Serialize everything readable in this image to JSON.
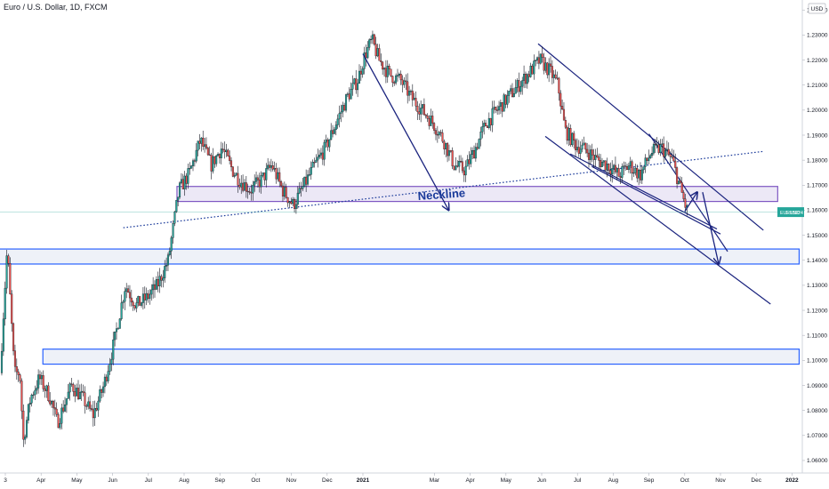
{
  "chart_title": "Euro / U.S. Dollar, 1D, FXCM",
  "currency_badge": "USD",
  "price_tag": {
    "symbol": "EURUSD",
    "value": "1.15924",
    "color": "#26a69a"
  },
  "neckline_label": "Neckline",
  "colors": {
    "up": "#26a69a",
    "down": "#ef5350",
    "wick": "#131722",
    "zone_border": "#2962ff",
    "zone_fill": "#eef1f8",
    "purple": "#7e57c2",
    "channel": "#1a237e",
    "dotted": "#1a3a9a"
  },
  "chart_data": {
    "type": "candlestick",
    "y_axis": {
      "min": 1.055,
      "max": 1.244,
      "ticks": [
        "1.06000",
        "1.07000",
        "1.08000",
        "1.09000",
        "1.10000",
        "1.11000",
        "1.12000",
        "1.13000",
        "1.14000",
        "1.15000",
        "1.16000",
        "1.17000",
        "1.18000",
        "1.19000",
        "1.20000",
        "1.21000",
        "1.22000",
        "1.23000",
        "1.24000"
      ]
    },
    "x_axis": {
      "ticks": [
        {
          "label": "3",
          "t": 0
        },
        {
          "label": "Apr",
          "t": 1
        },
        {
          "label": "May",
          "t": 2
        },
        {
          "label": "Jun",
          "t": 3
        },
        {
          "label": "Jul",
          "t": 4
        },
        {
          "label": "Aug",
          "t": 5
        },
        {
          "label": "Sep",
          "t": 6
        },
        {
          "label": "Oct",
          "t": 7
        },
        {
          "label": "Nov",
          "t": 8
        },
        {
          "label": "Dec",
          "t": 9
        },
        {
          "label": "2021",
          "t": 10,
          "bold": true
        },
        {
          "label": "Mar",
          "t": 12
        },
        {
          "label": "Apr",
          "t": 13
        },
        {
          "label": "May",
          "t": 14
        },
        {
          "label": "Jun",
          "t": 15
        },
        {
          "label": "Jul",
          "t": 16
        },
        {
          "label": "Aug",
          "t": 17
        },
        {
          "label": "Sep",
          "t": 18
        },
        {
          "label": "Oct",
          "t": 19
        },
        {
          "label": "Nov",
          "t": 20
        },
        {
          "label": "Dec",
          "t": 21
        },
        {
          "label": "2022",
          "t": 22,
          "bold": true
        }
      ]
    },
    "price_path": [
      [
        -0.1,
        1.095
      ],
      [
        0.1,
        1.145
      ],
      [
        0.3,
        1.095
      ],
      [
        0.45,
        1.095
      ],
      [
        0.55,
        1.068
      ],
      [
        0.75,
        1.085
      ],
      [
        1.0,
        1.093
      ],
      [
        1.3,
        1.085
      ],
      [
        1.5,
        1.075
      ],
      [
        1.9,
        1.09
      ],
      [
        2.2,
        1.085
      ],
      [
        2.5,
        1.078
      ],
      [
        2.8,
        1.09
      ],
      [
        3.1,
        1.108
      ],
      [
        3.4,
        1.13
      ],
      [
        3.7,
        1.122
      ],
      [
        4.0,
        1.125
      ],
      [
        4.3,
        1.13
      ],
      [
        4.6,
        1.14
      ],
      [
        4.9,
        1.168
      ],
      [
        5.2,
        1.175
      ],
      [
        5.5,
        1.188
      ],
      [
        5.8,
        1.178
      ],
      [
        6.1,
        1.185
      ],
      [
        6.4,
        1.176
      ],
      [
        6.6,
        1.172
      ],
      [
        6.9,
        1.168
      ],
      [
        7.2,
        1.172
      ],
      [
        7.5,
        1.178
      ],
      [
        7.8,
        1.168
      ],
      [
        8.1,
        1.162
      ],
      [
        8.4,
        1.17
      ],
      [
        8.7,
        1.178
      ],
      [
        9.0,
        1.185
      ],
      [
        9.3,
        1.195
      ],
      [
        9.6,
        1.205
      ],
      [
        9.9,
        1.212
      ],
      [
        10.1,
        1.222
      ],
      [
        10.3,
        1.228
      ],
      [
        10.5,
        1.22
      ],
      [
        10.8,
        1.214
      ],
      [
        11.1,
        1.212
      ],
      [
        11.4,
        1.205
      ],
      [
        11.7,
        1.2
      ],
      [
        12.0,
        1.195
      ],
      [
        12.3,
        1.188
      ],
      [
        12.6,
        1.178
      ],
      [
        12.9,
        1.176
      ],
      [
        13.2,
        1.185
      ],
      [
        13.5,
        1.195
      ],
      [
        13.8,
        1.2
      ],
      [
        14.1,
        1.205
      ],
      [
        14.4,
        1.21
      ],
      [
        14.7,
        1.215
      ],
      [
        15.0,
        1.22
      ],
      [
        15.3,
        1.215
      ],
      [
        15.5,
        1.21
      ],
      [
        15.7,
        1.192
      ],
      [
        16.0,
        1.186
      ],
      [
        16.3,
        1.184
      ],
      [
        16.6,
        1.18
      ],
      [
        16.9,
        1.178
      ],
      [
        17.2,
        1.174
      ],
      [
        17.5,
        1.178
      ],
      [
        17.8,
        1.174
      ],
      [
        18.1,
        1.183
      ],
      [
        18.4,
        1.185
      ],
      [
        18.7,
        1.18
      ],
      [
        18.9,
        1.17
      ],
      [
        19.1,
        1.16
      ]
    ],
    "zones": [
      {
        "name": "neckline-zone",
        "y1": 1.1695,
        "y2": 1.1635,
        "t1": 4.8,
        "t2": 21.6,
        "style": "purple"
      },
      {
        "name": "support-zone-1",
        "y1": 1.1445,
        "y2": 1.1385,
        "t1": -0.5,
        "t2": 22.2,
        "style": "blue"
      },
      {
        "name": "support-zone-2",
        "y1": 1.1045,
        "y2": 1.0985,
        "t1": 1.05,
        "t2": 22.2,
        "style": "blue"
      }
    ],
    "lines": [
      {
        "name": "dotted-trendline",
        "t1": 3.3,
        "y1": 1.153,
        "t2": 21.2,
        "y2": 1.1835,
        "style": "dotted"
      },
      {
        "name": "channel-top",
        "t1": 14.9,
        "y1": 1.2265,
        "t2": 21.2,
        "y2": 1.152,
        "style": "channel"
      },
      {
        "name": "channel-lower",
        "t1": 15.1,
        "y1": 1.1895,
        "t2": 21.4,
        "y2": 1.1225,
        "style": "channel"
      },
      {
        "name": "wedge-top",
        "t1": 18.0,
        "y1": 1.1905,
        "t2": 20.2,
        "y2": 1.1435,
        "style": "channel"
      },
      {
        "name": "wedge-bottom",
        "t1": 15.8,
        "y1": 1.1825,
        "t2": 19.9,
        "y2": 1.1525,
        "style": "channel"
      },
      {
        "name": "wedge-extra",
        "t1": 16.4,
        "y1": 1.1775,
        "t2": 20.0,
        "y2": 1.1505,
        "style": "channel"
      }
    ],
    "arrows": [
      {
        "name": "drop-arrow",
        "pts": [
          [
            10.0,
            1.2225
          ],
          [
            12.4,
            1.16
          ]
        ]
      },
      {
        "name": "projection-up-arrow",
        "pts": [
          [
            19.0,
            1.1595
          ],
          [
            19.35,
            1.1672
          ]
        ]
      },
      {
        "name": "projection-zigzag-arrow",
        "pts": [
          [
            19.5,
            1.1672
          ],
          [
            19.95,
            1.1385
          ]
        ]
      }
    ]
  }
}
